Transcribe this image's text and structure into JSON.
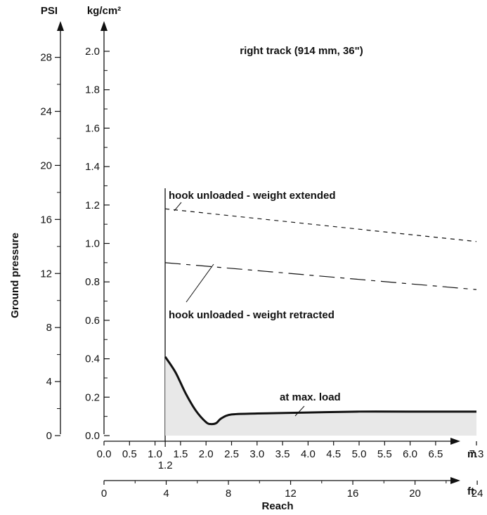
{
  "chart_data": {
    "type": "line",
    "title": "right track (914 mm, 36\")",
    "ylabel": "Ground pressure",
    "xlabel": "Reach",
    "y_units": {
      "primary": "kg/cm²",
      "secondary": "PSI"
    },
    "x_units": {
      "primary": "m",
      "secondary": "ft"
    },
    "ylim": [
      0.0,
      2.0
    ],
    "xlim": [
      0.0,
      7.3
    ],
    "y_ticks": [
      "0.0",
      "0.2",
      "0.4",
      "0.6",
      "0.8",
      "1.0",
      "1.2",
      "1.4",
      "1.6",
      "1.8",
      "2.0"
    ],
    "y2_ticks": [
      "0",
      "4",
      "8",
      "12",
      "16",
      "20",
      "24",
      "28"
    ],
    "x_ticks": [
      "0.0",
      "0.5",
      "1.0",
      "1.5",
      "2.0",
      "2.5",
      "3.0",
      "3.5",
      "4.0",
      "4.5",
      "5.0",
      "5.5",
      "6.0",
      "6.5",
      "7.3"
    ],
    "x_extra_tick": "1.2",
    "x2_ticks": [
      "0",
      "4",
      "8",
      "12",
      "16",
      "20",
      "24"
    ],
    "min_reach_m": 1.2,
    "series": [
      {
        "name": "hook unloaded - weight extended",
        "style": "short-dash",
        "x": [
          1.2,
          7.3
        ],
        "y": [
          1.18,
          1.01
        ]
      },
      {
        "name": "hook unloaded - weight retracted",
        "style": "long-dash",
        "x": [
          1.2,
          7.3
        ],
        "y": [
          0.9,
          0.76
        ]
      },
      {
        "name": "at max. load",
        "style": "solid",
        "x": [
          1.2,
          1.4,
          1.6,
          1.8,
          2.0,
          2.1,
          2.2,
          2.3,
          2.5,
          3.0,
          4.0,
          5.0,
          6.0,
          7.3
        ],
        "y": [
          0.41,
          0.33,
          0.22,
          0.13,
          0.07,
          0.06,
          0.065,
          0.09,
          0.11,
          0.115,
          0.12,
          0.125,
          0.125,
          0.125
        ]
      }
    ],
    "annotations": {
      "extended": "hook unloaded - weight extended",
      "retracted": "hook unloaded - weight retracted",
      "max_load": "at max. load"
    }
  }
}
